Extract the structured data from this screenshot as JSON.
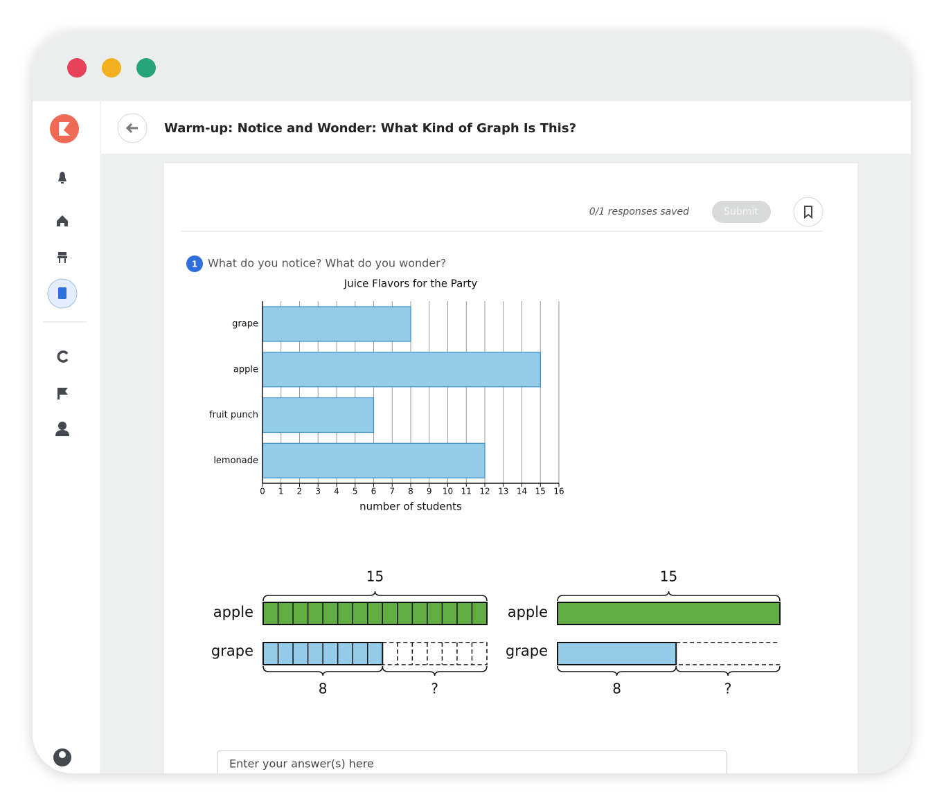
{
  "header": {
    "title": "Warm-up: Notice and Wonder: What Kind of Graph Is This?"
  },
  "toolbar": {
    "status": "0/1 responses saved",
    "submit": "Submit"
  },
  "question": {
    "number": "1",
    "text": "What do you notice? What do you wonder?"
  },
  "chart_data": {
    "type": "bar",
    "orientation": "horizontal",
    "title": "Juice Flavors for the Party",
    "categories": [
      "grape",
      "apple",
      "fruit punch",
      "lemonade"
    ],
    "values": [
      8,
      15,
      6,
      12
    ],
    "color": "#93cbe9",
    "xlabel": "number of students",
    "xlim": [
      0,
      16
    ],
    "xticks": [
      0,
      1,
      2,
      3,
      4,
      5,
      6,
      7,
      8,
      9,
      10,
      11,
      12,
      13,
      14,
      15,
      16
    ],
    "grid": true
  },
  "tape_diagrams": [
    {
      "top": "apple",
      "bottom": "grape",
      "total": 15,
      "known": 8,
      "unknown": "?",
      "partitioned": true
    },
    {
      "top": "apple",
      "bottom": "grape",
      "total": 15,
      "known": 8,
      "unknown": "?",
      "partitioned": false
    }
  ],
  "answer": {
    "placeholder": "Enter your answer(s) here"
  }
}
